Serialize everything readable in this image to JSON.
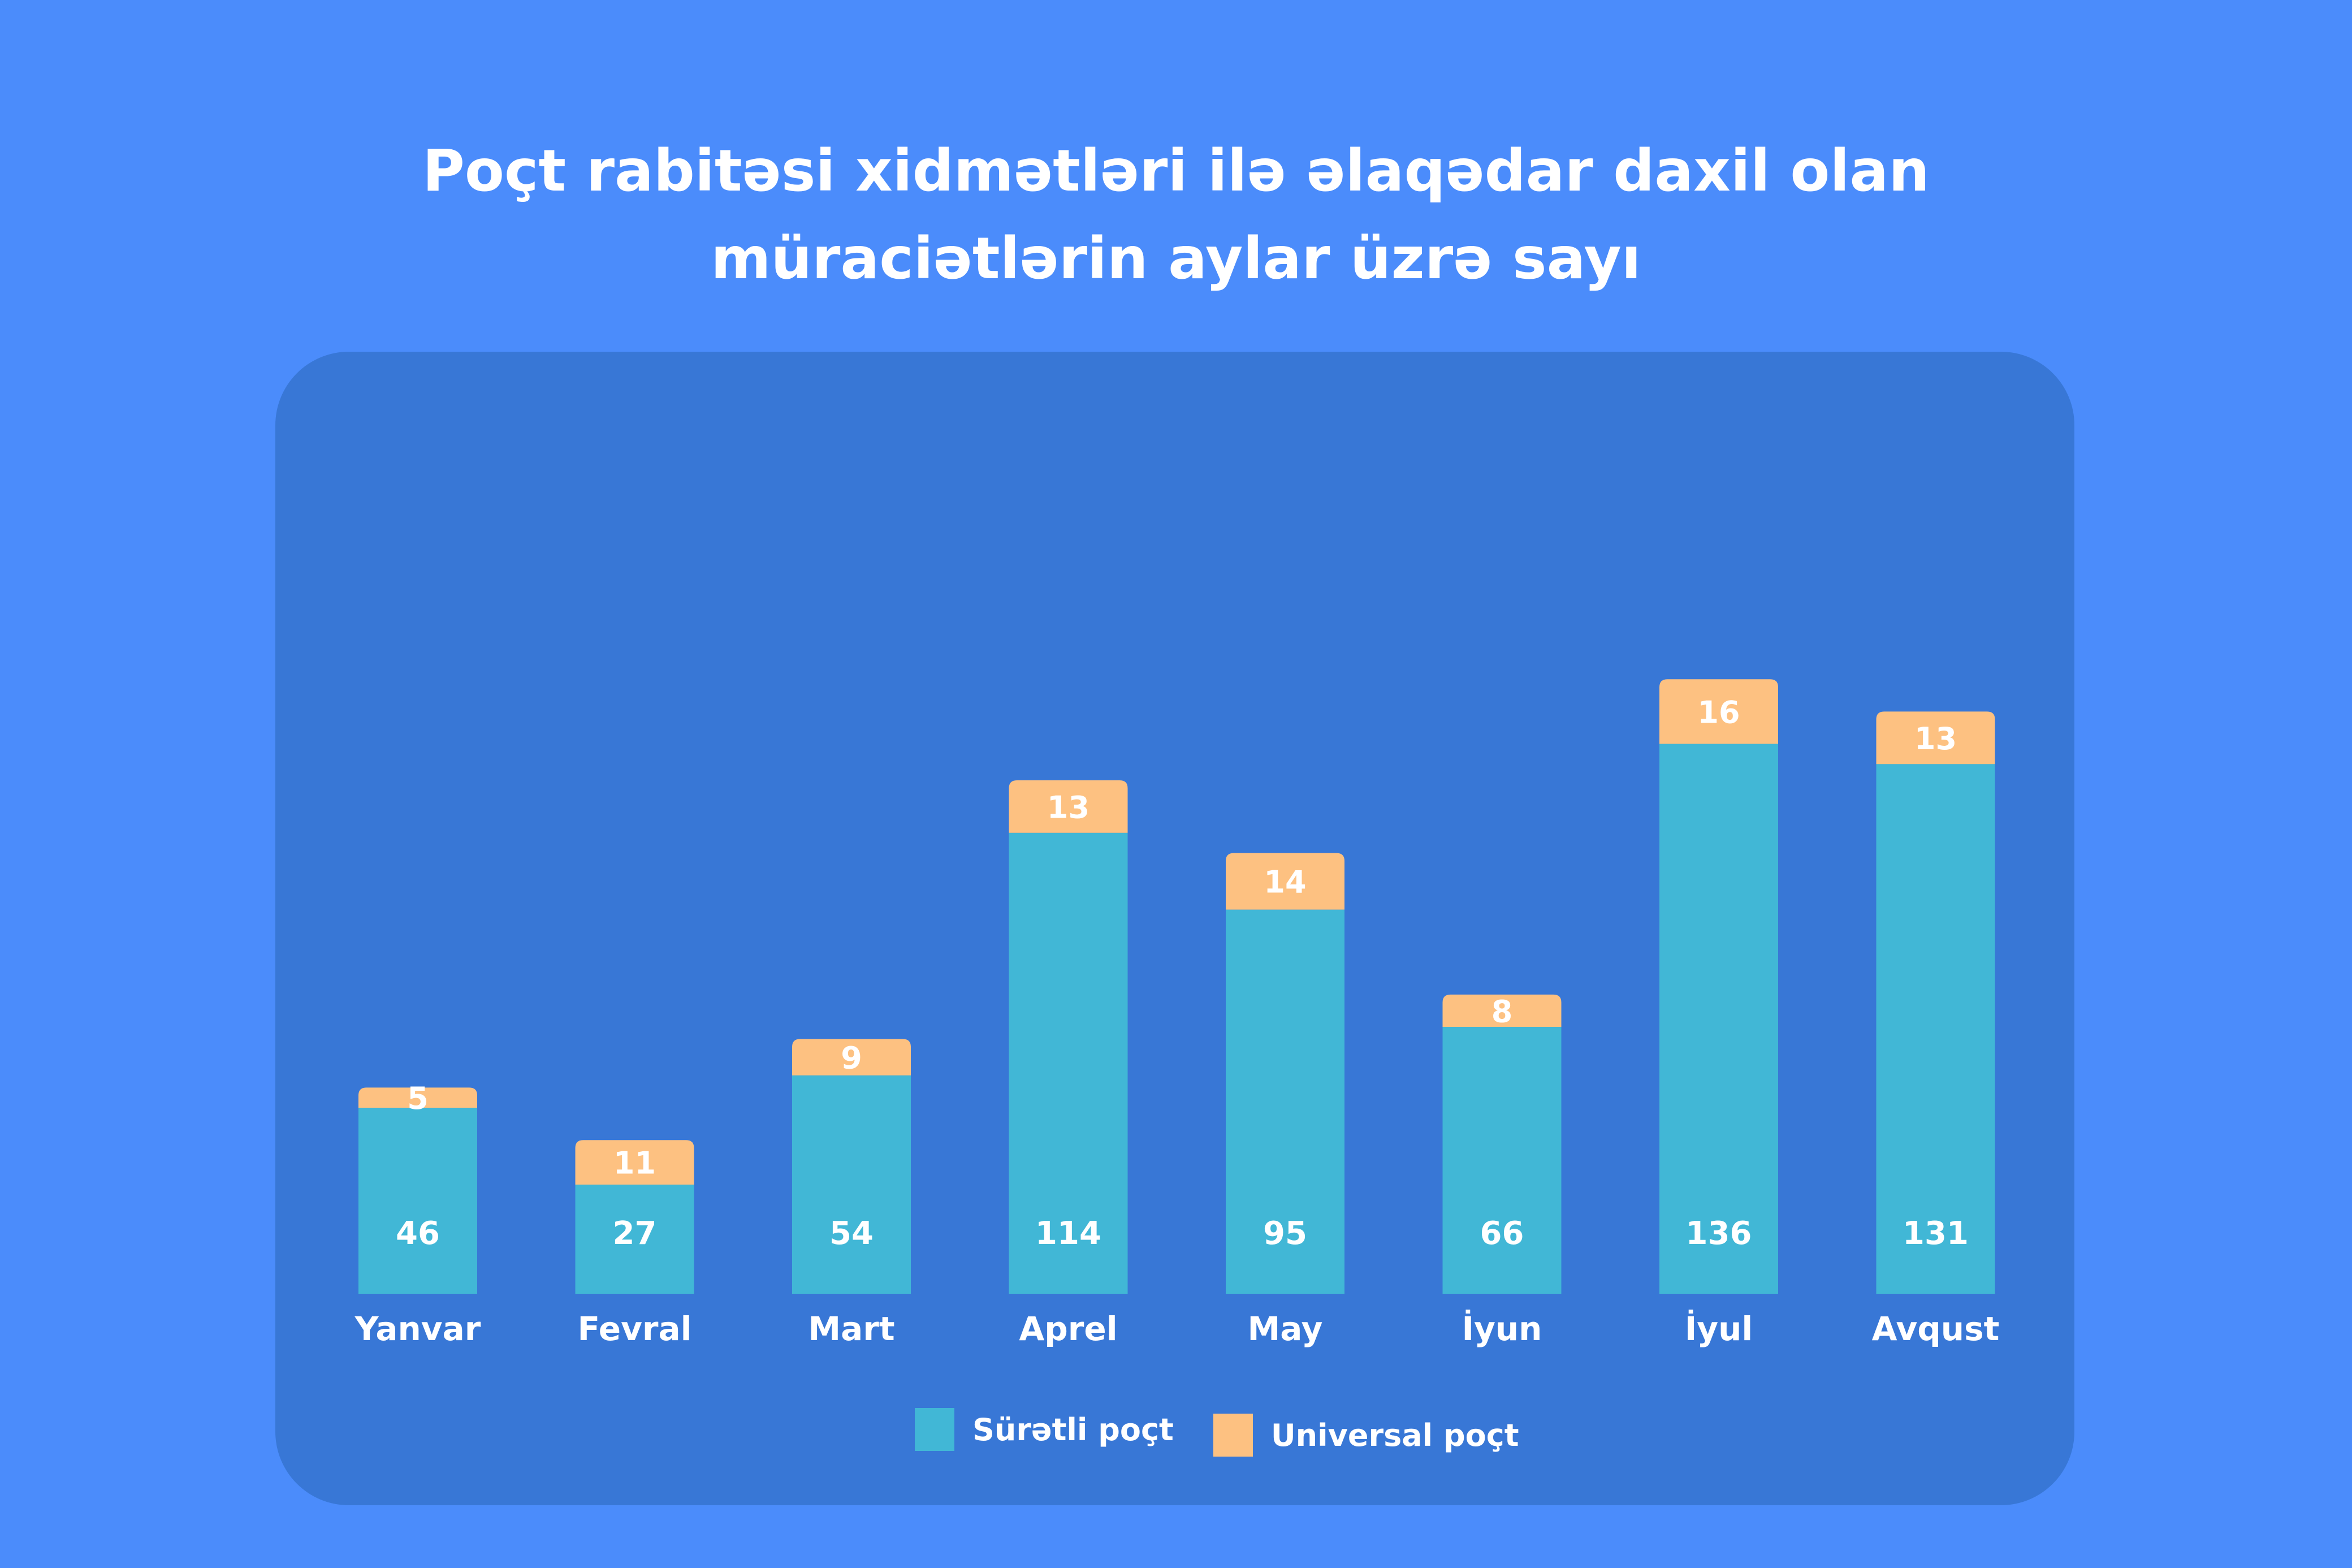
{
  "title_lines": [
    "Poçt rabitəsi xidmətləri ilə əlaqədar daxil olan",
    "müraciətlərin aylar üzrə sayı"
  ],
  "colors": {
    "background": "#4b8cfb",
    "panel": "#3877d6",
    "express": "#41b7d6",
    "universal": "#fdc181",
    "text": "#ffffff"
  },
  "chart_data": {
    "type": "bar",
    "stacked": true,
    "categories": [
      "Yanvar",
      "Fevral",
      "Mart",
      "Aprel",
      "May",
      "İyun",
      "İyul",
      "Avqust"
    ],
    "series": [
      {
        "name": "Sürətli poçt",
        "values": [
          46,
          27,
          54,
          114,
          95,
          66,
          136,
          131
        ]
      },
      {
        "name": "Universal poçt",
        "values": [
          5,
          11,
          9,
          13,
          14,
          8,
          16,
          13
        ]
      }
    ],
    "title": "Poçt rabitəsi xidmətləri ilə əlaqədar daxil olan müraciətlərin aylar üzrə sayı",
    "xlabel": "",
    "ylabel": "",
    "grid": false,
    "legend": "bottom"
  }
}
